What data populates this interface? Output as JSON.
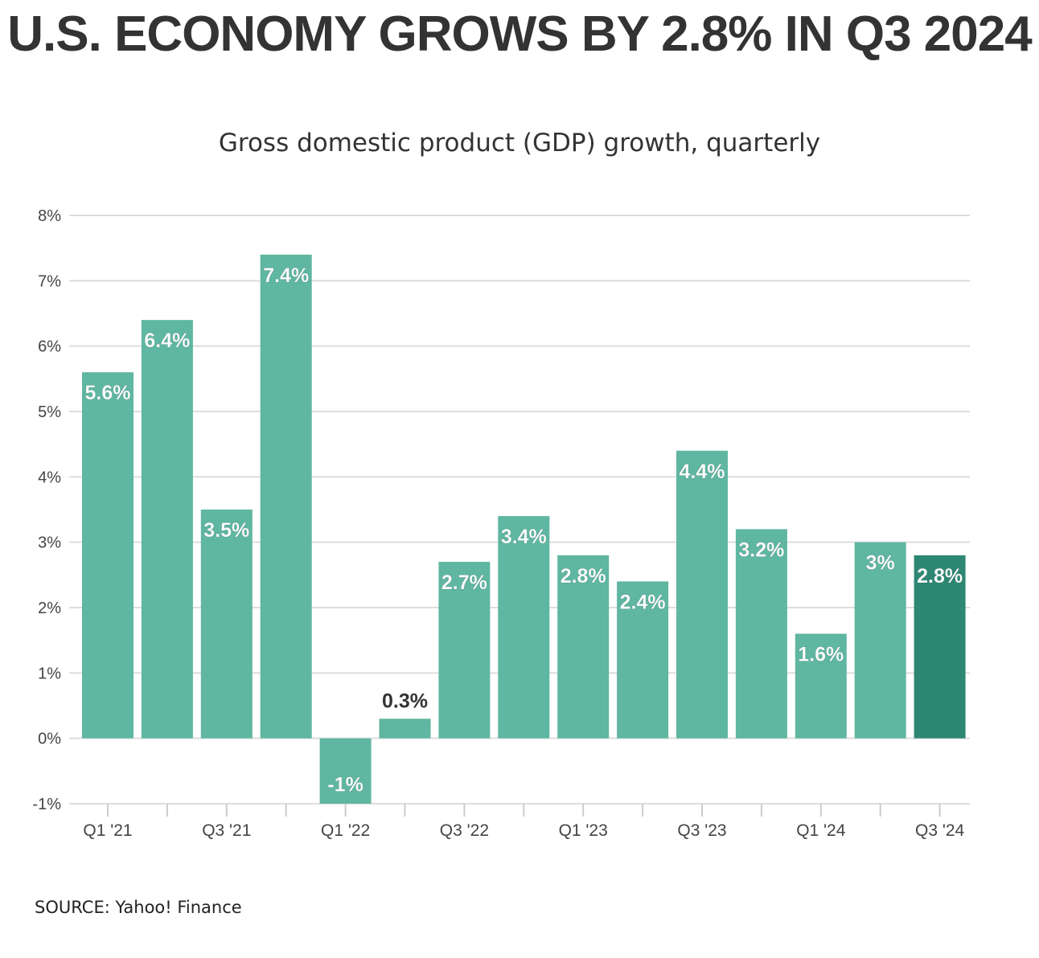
{
  "title": "U.S. ECONOMY GROWS BY 2.8% IN Q3 2024",
  "subtitle": "Gross domestic product (GDP) growth, quarterly",
  "source": "SOURCE: Yahoo! Finance",
  "colors": {
    "bar": "#5fb6a1",
    "bar_highlight": "#2e8773",
    "grid": "#dddddd",
    "axis_text": "#444444",
    "label_light": "#ffffff",
    "label_dark": "#333333"
  },
  "chart_data": {
    "type": "bar",
    "categories": [
      "Q1 '21",
      "Q2 '21",
      "Q3 '21",
      "Q4 '21",
      "Q1 '22",
      "Q2 '22",
      "Q3 '22",
      "Q4 '22",
      "Q1 '23",
      "Q2 '23",
      "Q3 '23",
      "Q4 '23",
      "Q1 '24",
      "Q2 '24",
      "Q3 '24"
    ],
    "tick_labels": [
      "Q1 '21",
      "",
      "Q3 '21",
      "",
      "Q1 '22",
      "",
      "Q3 '22",
      "",
      "Q1 '23",
      "",
      "Q3 '23",
      "",
      "Q1 '24",
      "",
      "Q3 '24"
    ],
    "values": [
      5.6,
      6.4,
      3.5,
      7.4,
      -1,
      0.3,
      2.7,
      3.4,
      2.8,
      2.4,
      4.4,
      3.2,
      1.6,
      3,
      2.8
    ],
    "data_labels": [
      "5.6%",
      "6.4%",
      "3.5%",
      "7.4%",
      "-1%",
      "0.3%",
      "2.7%",
      "3.4%",
      "2.8%",
      "2.4%",
      "4.4%",
      "3.2%",
      "1.6%",
      "3%",
      "2.8%"
    ],
    "highlight_index": 14,
    "ylim": [
      -1,
      8
    ],
    "yticks": [
      8,
      7,
      6,
      5,
      4,
      3,
      2,
      1,
      0,
      -1
    ],
    "ytick_labels": [
      "8%",
      "7%",
      "6%",
      "5%",
      "4%",
      "3%",
      "2%",
      "1%",
      "0%",
      "-1%"
    ],
    "grid": true,
    "xlabel": "",
    "ylabel": ""
  }
}
